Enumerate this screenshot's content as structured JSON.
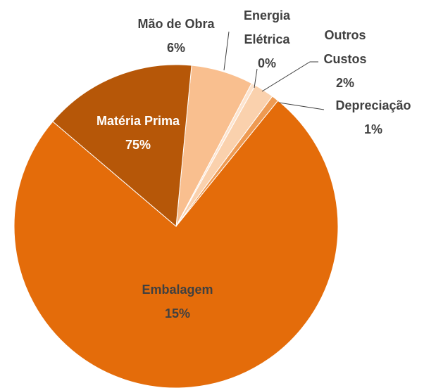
{
  "chart_data": {
    "type": "pie",
    "categories": [
      "Mão de Obra",
      "Energia Elétrica",
      "Outros Custos",
      "Depreciação",
      "Matéria Prima",
      "Embalagem"
    ],
    "values": [
      6.2,
      0.4,
      2.0,
      0.7,
      75.4,
      15.3
    ],
    "value_labels": [
      "6%",
      "0%",
      "2%",
      "1%",
      "75%",
      "15%"
    ],
    "colors": [
      "#f9bf8f",
      "#fde4cf",
      "#fad1ad",
      "#ee9a52",
      "#e46c0a",
      "#b65708"
    ]
  }
}
